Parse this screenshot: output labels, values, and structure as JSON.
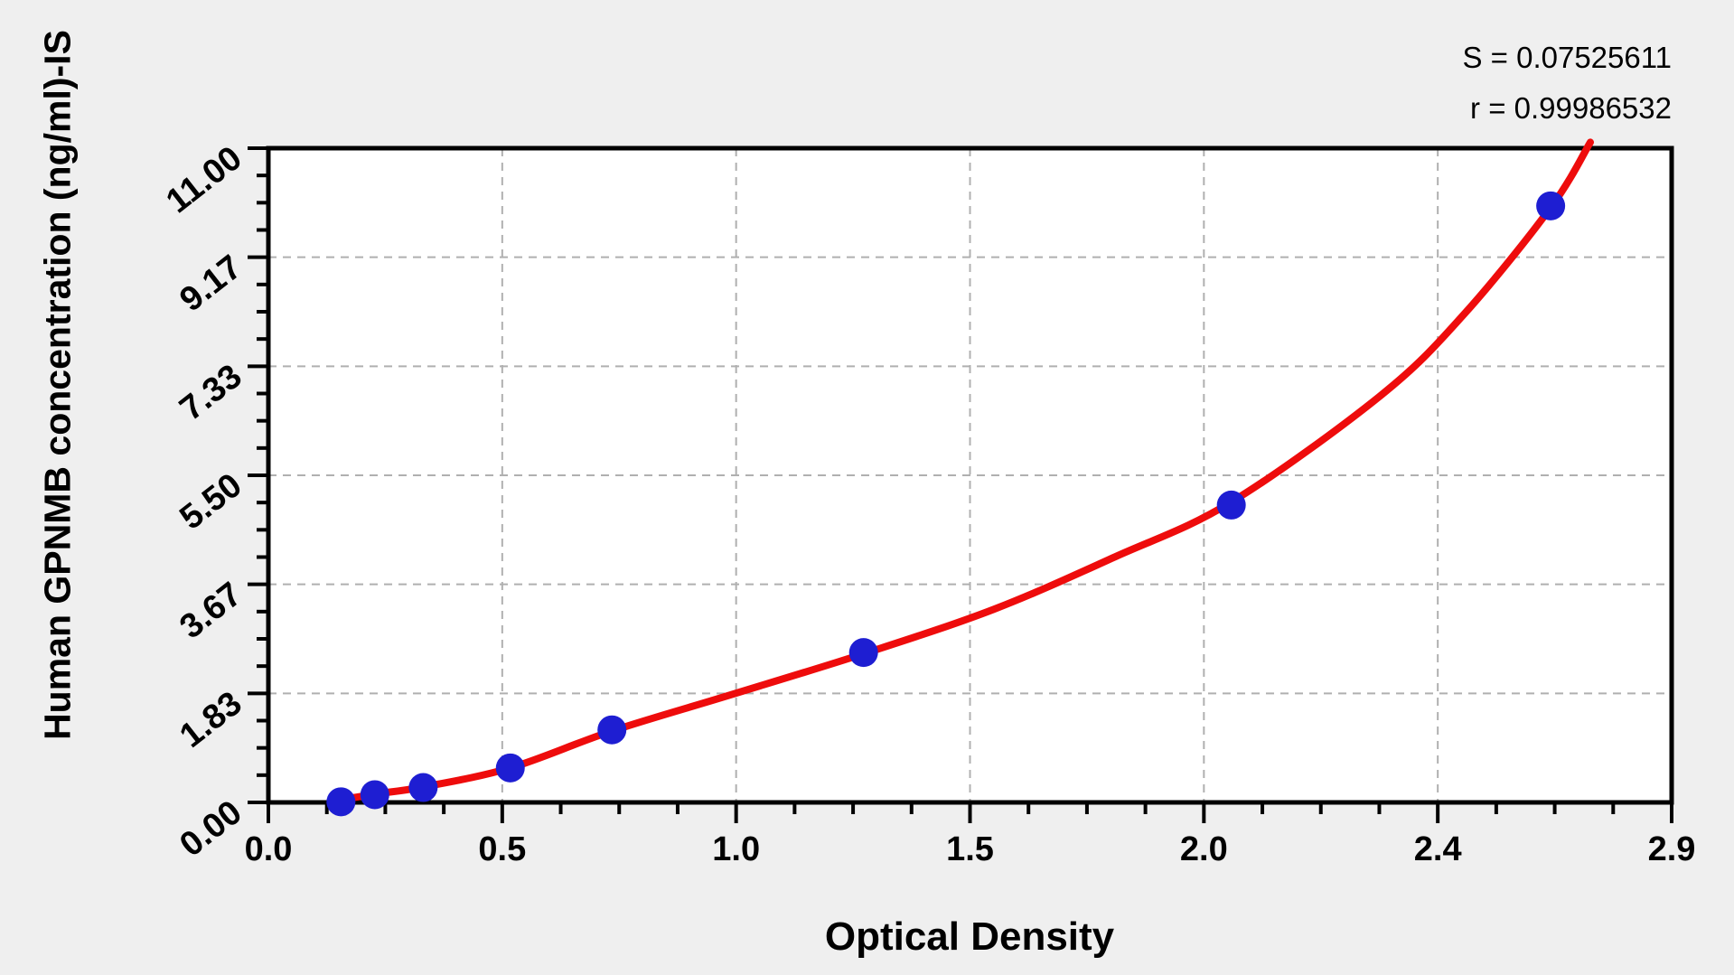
{
  "chart_data": {
    "type": "scatter",
    "title": "",
    "xlabel": "Optical Density",
    "ylabel": "Human GPNMB concentration (ng/ml)-IS",
    "stats": {
      "s_label": "S = 0.07525611",
      "r_label": "r = 0.99986532",
      "S": 0.07525611,
      "r": 0.99986532
    },
    "x_axis": {
      "range": [
        0,
        2.9
      ],
      "major_tick_labels": [
        "0.0",
        "0.5",
        "1.0",
        "1.5",
        "2.0",
        "2.4",
        "2.9"
      ],
      "minor_ticks_per_interval": 3
    },
    "y_axis": {
      "range": [
        0,
        11
      ],
      "major_tick_labels": [
        "0.00",
        "1.83",
        "3.67",
        "5.50",
        "7.33",
        "9.17",
        "11.00"
      ],
      "minor_ticks_per_interval": 3
    },
    "grid": {
      "style": "dashed",
      "on_major_ticks": true
    },
    "series": [
      {
        "name": "standards",
        "marker": "circle",
        "color": "#1e1ed2",
        "points": [
          {
            "x": 0.15,
            "y": 0.01
          },
          {
            "x": 0.22,
            "y": 0.13
          },
          {
            "x": 0.32,
            "y": 0.25
          },
          {
            "x": 0.5,
            "y": 0.58
          },
          {
            "x": 0.71,
            "y": 1.22
          },
          {
            "x": 1.23,
            "y": 2.52
          },
          {
            "x": 1.99,
            "y": 5.0
          },
          {
            "x": 2.65,
            "y": 10.03
          }
        ]
      }
    ],
    "fit_curve": {
      "name": "regression-fit",
      "color": "#ee0c0c",
      "anchors": [
        [
          0.133,
          0.02
        ],
        [
          0.22,
          0.14
        ],
        [
          0.32,
          0.26
        ],
        [
          0.5,
          0.58
        ],
        [
          0.71,
          1.2
        ],
        [
          0.96,
          1.82
        ],
        [
          1.23,
          2.5
        ],
        [
          1.5,
          3.25
        ],
        [
          1.75,
          4.13
        ],
        [
          1.99,
          5.05
        ],
        [
          2.3,
          6.85
        ],
        [
          2.47,
          8.2
        ],
        [
          2.65,
          10.0
        ],
        [
          2.732,
          11.1
        ]
      ]
    },
    "colors": {
      "background": "#efefef",
      "plot_background": "#ffffff",
      "axis": "#000000",
      "grid": "#b0b0b0"
    }
  }
}
